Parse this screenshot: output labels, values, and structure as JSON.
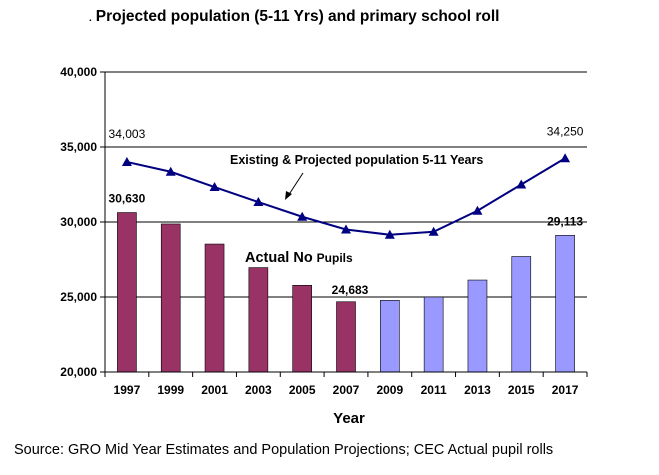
{
  "title": "Projected population (5-11 Yrs) and primary school roll",
  "title_marker": ".",
  "source": "Source:  GRO Mid Year Estimates and Population Projections; CEC Actual pupil rolls",
  "chart_data": {
    "type": "bar",
    "categories": [
      "1997",
      "1999",
      "2001",
      "2003",
      "2005",
      "2007",
      "2009",
      "2011",
      "2013",
      "2015",
      "2017"
    ],
    "xlabel": "Year",
    "ylabel": "",
    "ylim": [
      20000,
      40000
    ],
    "yticks": [
      20000,
      25000,
      30000,
      35000,
      40000
    ],
    "ytick_labels": [
      "20,000",
      "25,000",
      "30,000",
      "35,000",
      "40,000"
    ],
    "grid": true,
    "series": [
      {
        "name": "Actual No Pupils",
        "kind": "bar",
        "values": [
          30630,
          29870,
          28530,
          26960,
          25780,
          24683,
          24780,
          25000,
          26130,
          27700,
          29113
        ],
        "colors": [
          "#993366",
          "#993366",
          "#993366",
          "#993366",
          "#993366",
          "#993366",
          "#9999ff",
          "#9999ff",
          "#9999ff",
          "#9999ff",
          "#9999ff"
        ]
      },
      {
        "name": "Existing & Projected population 5-11 Years",
        "kind": "line",
        "color": "#000080",
        "values": [
          34003,
          33350,
          32330,
          31330,
          30350,
          29500,
          29150,
          29350,
          30750,
          32500,
          34250
        ]
      }
    ],
    "data_labels": [
      {
        "text": "34,003",
        "series": 1,
        "index": 0
      },
      {
        "text": "30,630",
        "series": 0,
        "index": 0
      },
      {
        "text": "24,683",
        "series": 0,
        "index": 5
      },
      {
        "text": "34,250",
        "series": 1,
        "index": 10
      },
      {
        "text": "29,113",
        "series": 0,
        "index": 10
      }
    ],
    "annotations": {
      "line_label": "Existing & Projected population 5-11 Years",
      "bar_label_main": "Actual No",
      "bar_label_tail": "Pupils"
    }
  }
}
